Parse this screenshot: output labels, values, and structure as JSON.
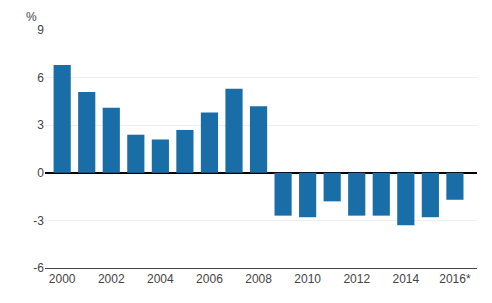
{
  "chart_data": {
    "type": "bar",
    "x": [
      2000,
      2001,
      2002,
      2003,
      2004,
      2005,
      2006,
      2007,
      2008,
      2009,
      2010,
      2011,
      2012,
      2013,
      2014,
      2015,
      2016
    ],
    "values": [
      6.8,
      5.1,
      4.1,
      2.4,
      2.1,
      2.7,
      3.8,
      5.3,
      4.2,
      -2.7,
      -2.8,
      -1.8,
      -2.7,
      -2.7,
      -3.3,
      -2.8,
      -1.7
    ],
    "color": "#1a6ea8",
    "annotations": [
      "%"
    ],
    "xlim": [
      1999.3,
      2016.9
    ],
    "xticks": [
      2000,
      2002,
      2004,
      2006,
      2008,
      2010,
      2012,
      2014,
      {
        "value": 2016,
        "label": "2016*"
      }
    ],
    "ylim": [
      -6,
      9
    ],
    "yticks": [
      -6,
      -3,
      0,
      3,
      6,
      9
    ],
    "grid": true
  }
}
